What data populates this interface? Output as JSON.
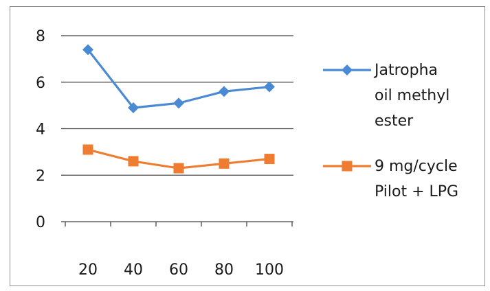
{
  "chart_data": {
    "type": "line",
    "categories": [
      "20",
      "40",
      "60",
      "80",
      "100"
    ],
    "x": [
      20,
      40,
      60,
      80,
      100
    ],
    "yticks": [
      "0",
      "2",
      "4",
      "6",
      "8"
    ],
    "ylim": [
      0,
      8
    ],
    "grid": "horizontal",
    "legend_position": "right",
    "title": "",
    "xlabel": "",
    "ylabel": "",
    "series": [
      {
        "name": "Jatropha oil methyl ester",
        "legend_lines": [
          "Jatropha",
          "oil methyl",
          "ester"
        ],
        "values": [
          7.4,
          4.9,
          5.1,
          5.6,
          5.8
        ],
        "color": "#4a8ad4",
        "marker": "diamond"
      },
      {
        "name": "9 mg/cycle Pilot + LPG",
        "legend_lines": [
          "9 mg/cycle",
          "Pilot + LPG"
        ],
        "values": [
          3.1,
          2.6,
          2.3,
          2.5,
          2.7
        ],
        "color": "#ee7d31",
        "marker": "square"
      }
    ]
  }
}
